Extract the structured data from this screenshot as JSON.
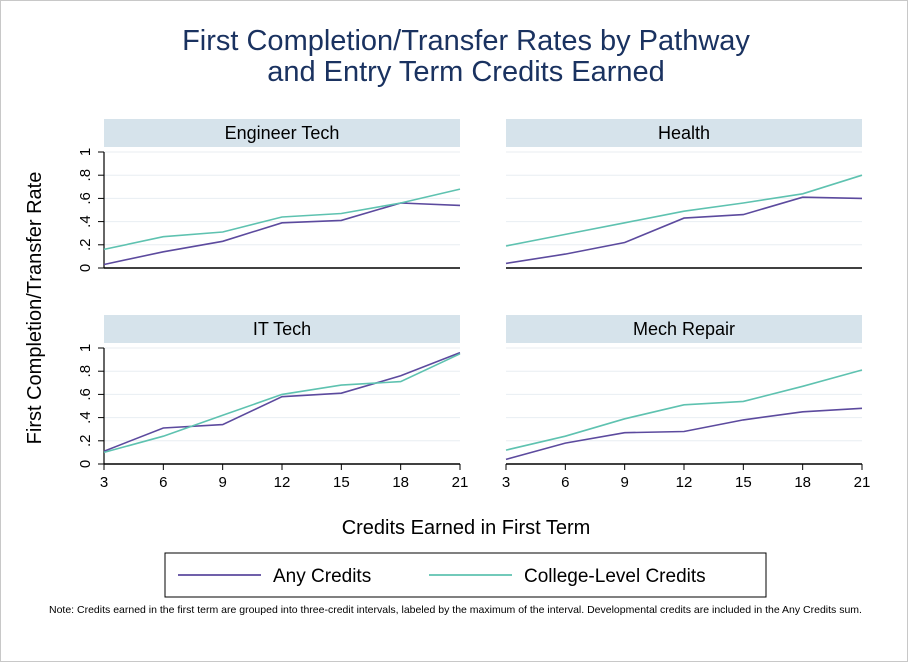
{
  "title_lines": [
    "First Completion/Transfer Rates by Pathway",
    "and Entry Term Credits Earned"
  ],
  "note": "Note: Credits earned in the first term are grouped into three-credit intervals, labeled by the maximum of the interval. Developmental credits are included in the Any Credits sum.",
  "colors": {
    "any": "#5c4a9e",
    "college": "#5ec2b0",
    "strip": "#d6e3eb",
    "grid": "#e8eef2"
  },
  "chart_data": {
    "type": "line",
    "xlabel": "Credits Earned in First Term",
    "ylabel": "First Completion/Transfer Rate",
    "x": [
      3,
      6,
      9,
      12,
      15,
      18,
      21
    ],
    "xlim": [
      3,
      21
    ],
    "ylim": [
      0,
      1
    ],
    "yticks": [
      0,
      0.2,
      0.4,
      0.6,
      0.8,
      1
    ],
    "ytick_labels": [
      "0",
      ".2",
      ".4",
      ".6",
      ".8",
      "1"
    ],
    "legend": {
      "position": "bottom",
      "entries": [
        "Any Credits",
        "College-Level Credits"
      ]
    },
    "panels": [
      {
        "title": "Engineer Tech",
        "series": [
          {
            "name": "Any Credits",
            "values": [
              0.03,
              0.14,
              0.23,
              0.39,
              0.41,
              0.56,
              0.54
            ]
          },
          {
            "name": "College-Level Credits",
            "values": [
              0.16,
              0.27,
              0.31,
              0.44,
              0.47,
              0.56,
              0.68
            ]
          }
        ]
      },
      {
        "title": "Health",
        "series": [
          {
            "name": "Any Credits",
            "values": [
              0.04,
              0.12,
              0.22,
              0.43,
              0.46,
              0.61,
              0.6
            ]
          },
          {
            "name": "College-Level Credits",
            "values": [
              0.19,
              0.29,
              0.39,
              0.49,
              0.56,
              0.64,
              0.8
            ]
          }
        ]
      },
      {
        "title": "IT Tech",
        "series": [
          {
            "name": "Any Credits",
            "values": [
              0.11,
              0.31,
              0.34,
              0.58,
              0.61,
              0.76,
              0.96
            ]
          },
          {
            "name": "College-Level Credits",
            "values": [
              0.1,
              0.24,
              0.42,
              0.6,
              0.68,
              0.71,
              0.95
            ]
          }
        ]
      },
      {
        "title": "Mech Repair",
        "series": [
          {
            "name": "Any Credits",
            "values": [
              0.04,
              0.18,
              0.27,
              0.28,
              0.38,
              0.45,
              0.48
            ]
          },
          {
            "name": "College-Level Credits",
            "values": [
              0.12,
              0.24,
              0.39,
              0.51,
              0.54,
              0.67,
              0.81
            ]
          }
        ]
      }
    ]
  }
}
